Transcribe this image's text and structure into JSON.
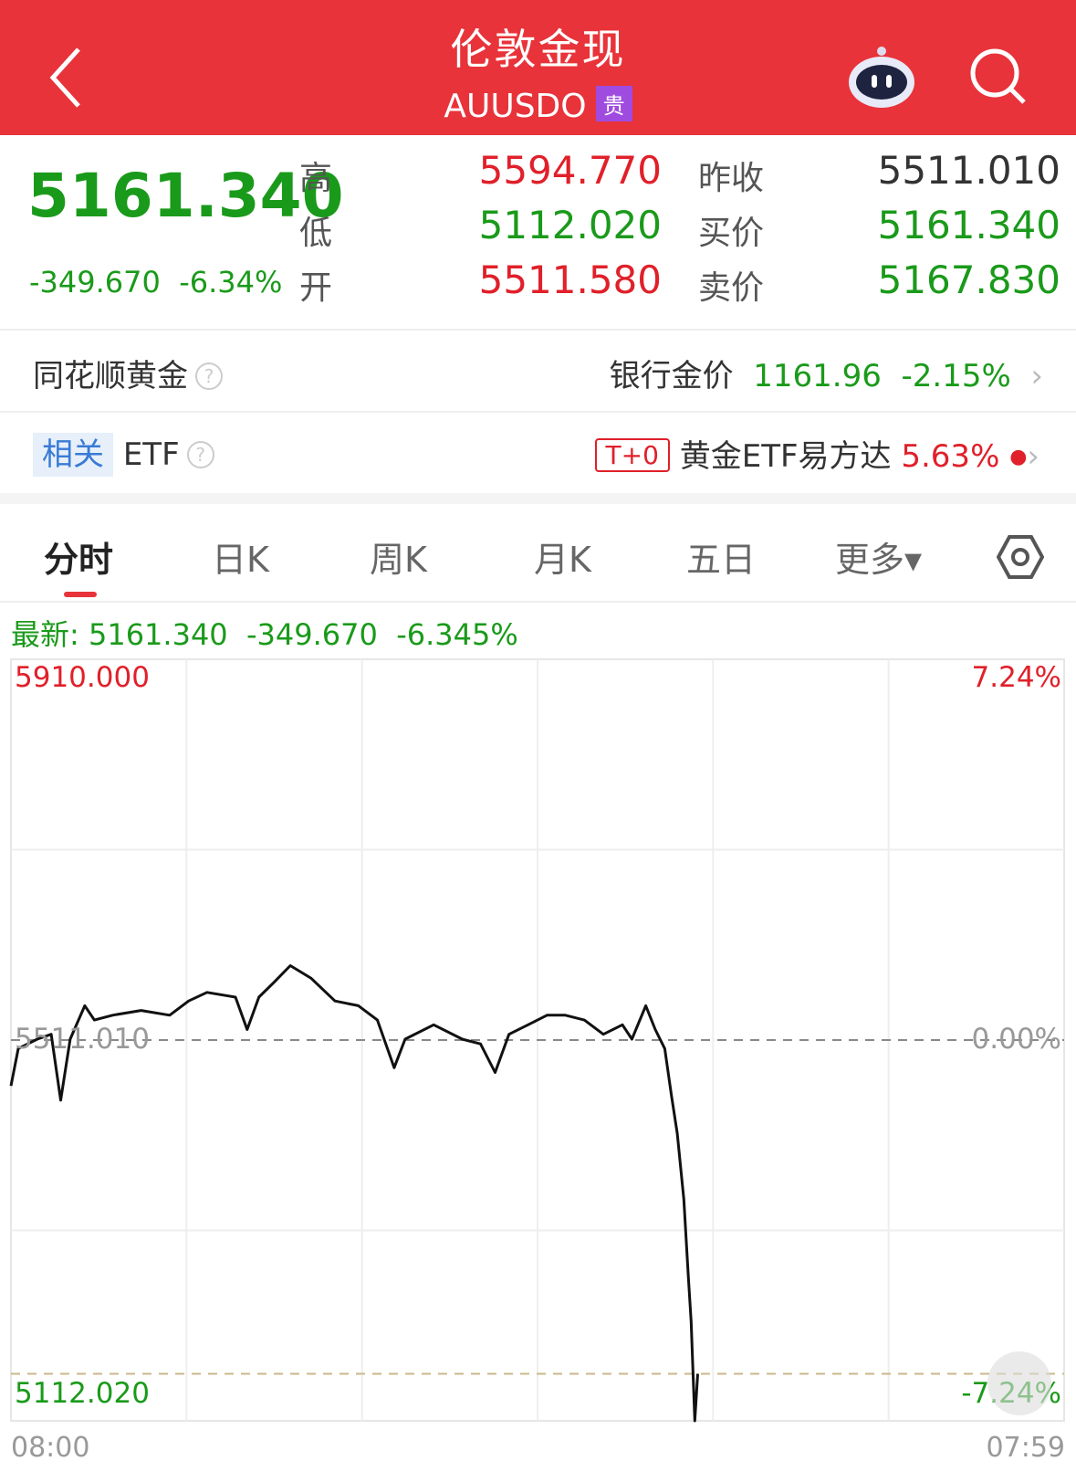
{
  "header": {
    "title": "伦敦金现",
    "code": "AUUSDO",
    "tag": "贵",
    "icons": [
      "back-icon",
      "robot-assistant-icon",
      "search-icon"
    ]
  },
  "quote": {
    "price": "5161.340",
    "change": "-349.670",
    "change_pct": "-6.34%",
    "high_label": "高",
    "high": "5594.770",
    "low_label": "低",
    "low": "5112.020",
    "open_label": "开",
    "open": "5511.580",
    "prev_close_label": "昨收",
    "prev_close": "5511.010",
    "bid_label": "买价",
    "bid": "5161.340",
    "ask_label": "卖价",
    "ask": "5167.830"
  },
  "bank_gold": {
    "label": "同花顺黄金",
    "help": "?",
    "price_label": "银行金价",
    "price": "1161.96",
    "change_pct": "-2.15%"
  },
  "etf": {
    "tag": "相关",
    "label": "ETF",
    "help": "?",
    "badge": "T+0",
    "name": "黄金ETF易方达",
    "change_pct": "5.63%"
  },
  "tabs": [
    {
      "label": "分时",
      "active": true
    },
    {
      "label": "日K"
    },
    {
      "label": "周K"
    },
    {
      "label": "月K"
    },
    {
      "label": "五日"
    },
    {
      "label": "更多▾"
    }
  ],
  "latest": {
    "label": "最新:",
    "price": "5161.340",
    "change": "-349.670",
    "change_pct": "-6.345%"
  },
  "colors": {
    "up": "#e0202a",
    "down": "#1a9a1a",
    "header": "#e8333a"
  },
  "chart_data": {
    "type": "line",
    "title": "",
    "xlabel": "",
    "ylabel": "",
    "ylim": [
      5112.02,
      5910.0
    ],
    "y_labels": {
      "top": "5910.000",
      "mid": "5511.010",
      "bottom": "5112.020"
    },
    "pct_labels": {
      "top": "7.24%",
      "mid": "0.00%",
      "bottom": "-7.24%"
    },
    "x_labels": [
      "08:00",
      "07:59"
    ],
    "reference": 5511.01,
    "current": 5161.34,
    "grid": true,
    "x": [
      "08:00",
      "08:10",
      "08:36",
      "08:55",
      "09:08",
      "09:21",
      "09:41",
      "09:54",
      "10:19",
      "10:58",
      "11:37",
      "12:03",
      "12:28",
      "13:07",
      "13:23",
      "13:39",
      "13:59",
      "14:22",
      "14:50",
      "15:23",
      "15:55",
      "16:21",
      "16:44",
      "16:59",
      "17:38",
      "18:17",
      "18:42",
      "19:02",
      "19:21",
      "19:47",
      "20:13",
      "20:38",
      "21:04",
      "21:30",
      "21:56",
      "22:09",
      "22:28",
      "22:41",
      "22:54",
      "23:03",
      "23:11",
      "23:20",
      "23:26",
      "23:30",
      "23:35",
      "23:39"
    ],
    "values": [
      5463,
      5502,
      5512,
      5517,
      5448,
      5512,
      5547,
      5532,
      5537,
      5542,
      5537,
      5552,
      5561,
      5556,
      5522,
      5556,
      5571,
      5589,
      5576,
      5552,
      5547,
      5532,
      5482,
      5512,
      5527,
      5512,
      5507,
      5477,
      5517,
      5527,
      5537,
      5537,
      5532,
      5517,
      5527,
      5512,
      5547,
      5522,
      5502,
      5453,
      5413,
      5344,
      5265,
      5216,
      5112.02,
      5161.34
    ]
  }
}
